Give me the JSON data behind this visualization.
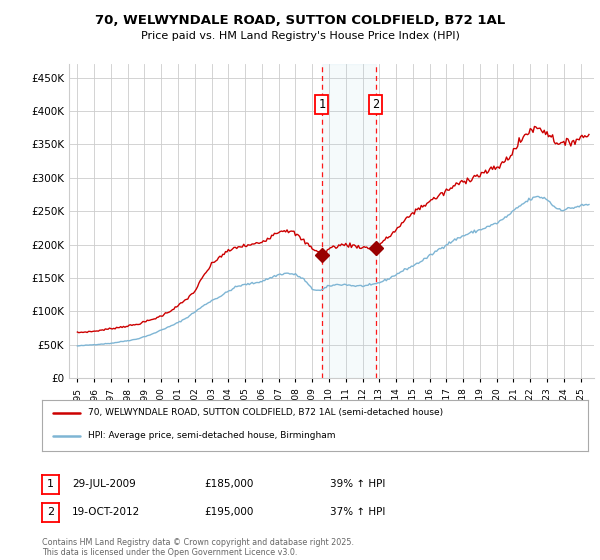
{
  "title_line1": "70, WELWYNDALE ROAD, SUTTON COLDFIELD, B72 1AL",
  "title_line2": "Price paid vs. HM Land Registry's House Price Index (HPI)",
  "background_color": "#ffffff",
  "grid_color": "#cccccc",
  "legend1_label": "70, WELWYNDALE ROAD, SUTTON COLDFIELD, B72 1AL (semi-detached house)",
  "legend2_label": "HPI: Average price, semi-detached house, Birmingham",
  "red_line_color": "#cc0000",
  "blue_line_color": "#7eb5d4",
  "sale1_date": 2009.57,
  "sale1_price": 185000,
  "sale2_date": 2012.8,
  "sale2_price": 195000,
  "footer": "Contains HM Land Registry data © Crown copyright and database right 2025.\nThis data is licensed under the Open Government Licence v3.0.",
  "ylim_min": 0,
  "ylim_max": 470000,
  "yticks": [
    0,
    50000,
    100000,
    150000,
    200000,
    250000,
    300000,
    350000,
    400000,
    450000
  ],
  "xlim_min": 1994.5,
  "xlim_max": 2025.8
}
